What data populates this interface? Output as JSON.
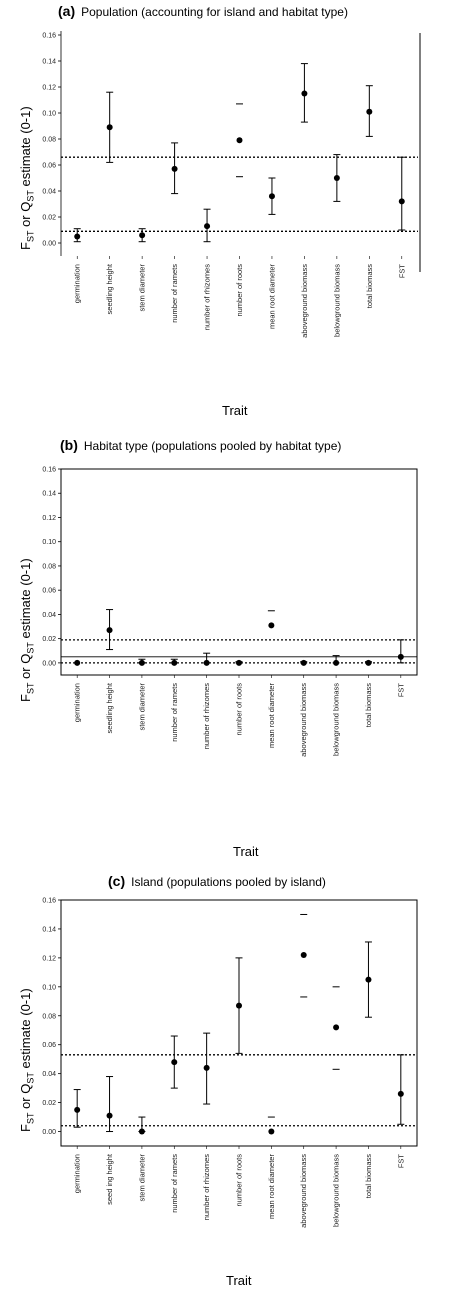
{
  "chart_data": [
    {
      "id": "a",
      "type": "scatter",
      "panel_letter": "(a)",
      "title": "Population (accounting for island and habitat type)",
      "xlabel": "Trait",
      "ylabel": {
        "main": "F",
        "sub1": "ST",
        "mid": " or Q",
        "sub2": "ST",
        "tail": " estimate (0-1)"
      },
      "ylim": [
        -0.01,
        0.16
      ],
      "yticks": [
        "0.00",
        "0.02",
        "0.04",
        "0.06",
        "0.08",
        "0.10",
        "0.12",
        "0.14",
        "0.16"
      ],
      "categories": [
        "germination",
        "seedling height",
        "stem diameter",
        "number of ramets",
        "number of rhizomes",
        "number of roots",
        "mean root diameter",
        "aboveground biomass",
        "belowground biomass",
        "total biomass",
        "FST"
      ],
      "values": [
        0.005,
        0.089,
        0.006,
        0.057,
        0.013,
        0.079,
        0.036,
        0.115,
        0.05,
        0.101,
        0.032
      ],
      "lower": [
        0.001,
        0.062,
        0.001,
        0.038,
        0.001,
        0.051,
        0.022,
        0.093,
        0.032,
        0.082,
        0.01
      ],
      "upper": [
        0.011,
        0.116,
        0.011,
        0.077,
        0.026,
        0.107,
        0.05,
        0.138,
        0.068,
        0.121,
        0.066
      ],
      "whisker_style": [
        "bar",
        "bar",
        "bar",
        "bar",
        "bar",
        "caps",
        "bar",
        "bar",
        "bar",
        "bar",
        "bar"
      ],
      "reference_lines": [
        0.066,
        0.009
      ]
    },
    {
      "id": "b",
      "type": "scatter",
      "panel_letter": "(b)",
      "title": "Habitat type (populations pooled by habitat type)",
      "xlabel": "Trait",
      "ylabel": {
        "main": "F",
        "sub1": "ST",
        "mid": " or Q",
        "sub2": "ST",
        "tail": " estimate (0-1)"
      },
      "ylim": [
        -0.01,
        0.16
      ],
      "yticks": [
        "0.00",
        "0.02",
        "0.04",
        "0.06",
        "0.08",
        "0.10",
        "0.12",
        "0.14",
        "0.16"
      ],
      "categories": [
        "germination",
        "seedling height",
        "stem diameter",
        "number of ramets",
        "number of rhizomes",
        "number of roots",
        "mean root diameter",
        "aboveground biomass",
        "belowground biomass",
        "total biomass",
        "FST"
      ],
      "values": [
        0.0,
        0.027,
        0.0,
        0.0,
        0.0,
        0.0,
        0.031,
        0.0,
        0.0,
        0.0,
        0.005
      ],
      "lower": [
        0.0,
        0.011,
        0.0,
        0.0,
        0.0,
        0.0,
        0.031,
        0.0,
        0.0,
        0.0,
        0.0
      ],
      "upper": [
        0.0,
        0.044,
        0.003,
        0.003,
        0.008,
        0.001,
        0.043,
        0.001,
        0.006,
        0.001,
        0.019
      ],
      "whisker_style": [
        "bar",
        "bar",
        "bar",
        "bar",
        "bar",
        "bar",
        "caps",
        "bar",
        "bar",
        "bar",
        "bar"
      ],
      "reference_lines": [
        0.019,
        0.0,
        0.005
      ]
    },
    {
      "id": "c",
      "type": "scatter",
      "panel_letter": "(c)",
      "title": "Island (populations pooled by island)",
      "xlabel": "Trait",
      "ylabel": {
        "main": "F",
        "sub1": "ST",
        "mid": " or Q",
        "sub2": "ST",
        "tail": " estimate (0-1)"
      },
      "ylim": [
        -0.01,
        0.16
      ],
      "yticks": [
        "0.00",
        "0.02",
        "0.04",
        "0.06",
        "0.08",
        "0.10",
        "0.12",
        "0.14",
        "0.16"
      ],
      "categories": [
        "germination",
        "seed ing height",
        "stem diameter",
        "number of ramets",
        "number of rhizomes",
        "number of roots",
        "mean root diameter",
        "aboveground biomass",
        "belowground biomass",
        "total biomass",
        "FST"
      ],
      "values": [
        0.015,
        0.011,
        0.0,
        0.048,
        0.044,
        0.087,
        0.0,
        0.122,
        0.072,
        0.105,
        0.026
      ],
      "lower": [
        0.003,
        0.0,
        0.0,
        0.03,
        0.019,
        0.054,
        0.0,
        0.093,
        0.043,
        0.079,
        0.005
      ],
      "upper": [
        0.029,
        0.038,
        0.01,
        0.066,
        0.068,
        0.12,
        0.01,
        0.15,
        0.1,
        0.131,
        0.053
      ],
      "whisker_style": [
        "bar",
        "bar",
        "bar",
        "bar",
        "bar",
        "bar",
        "caps",
        "caps",
        "caps",
        "bar",
        "bar"
      ],
      "reference_lines": [
        0.053,
        0.004
      ]
    }
  ]
}
